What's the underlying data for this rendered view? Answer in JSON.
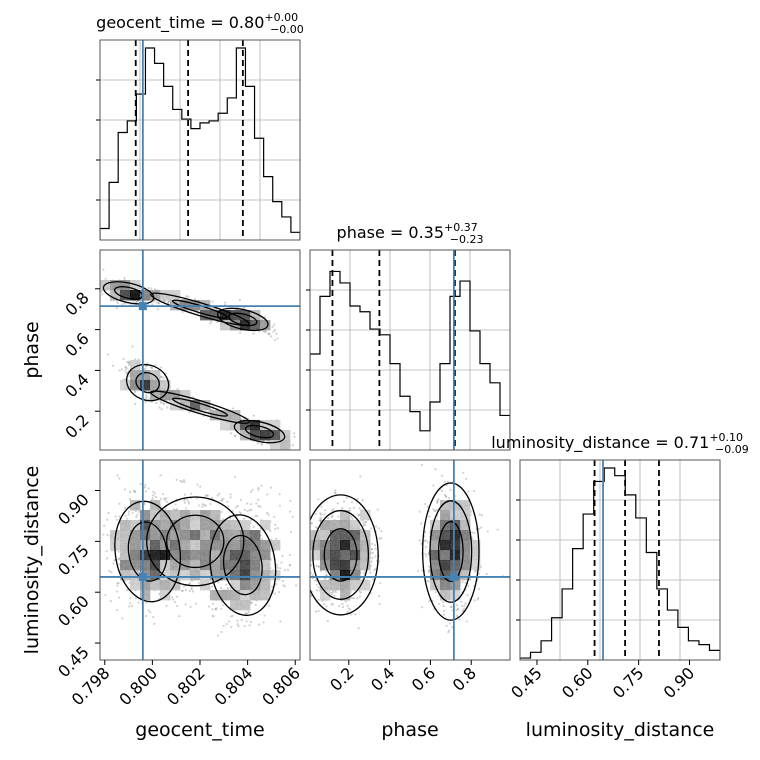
{
  "chart_data": {
    "type": "corner",
    "parameters": [
      "geocent_time",
      "phase",
      "luminosity_distance"
    ],
    "truth": {
      "geocent_time": 0.7996,
      "phase": 0.715,
      "luminosity_distance": 0.645
    },
    "ranges": {
      "geocent_time": [
        0.7978,
        0.8062
      ],
      "phase": [
        0.01,
        0.99
      ],
      "luminosity_distance": [
        0.4,
        0.99
      ]
    },
    "titles": [
      {
        "param": "geocent_time",
        "text": "geocent_time = 0.80",
        "plus": "+0.00",
        "minus": "−0.00"
      },
      {
        "param": "phase",
        "text": "phase = 0.35",
        "plus": "+0.37",
        "minus": "−0.23"
      },
      {
        "param": "luminosity_distance",
        "text": "luminosity_distance = 0.71",
        "plus": "+0.10",
        "minus": "−0.09"
      }
    ],
    "ticks": {
      "geocent_time": {
        "values": [
          0.798,
          0.8,
          0.802,
          0.804,
          0.806
        ],
        "labels": [
          "0.798",
          "0.800",
          "0.802",
          "0.804",
          "0.806"
        ]
      },
      "phase_x": {
        "values": [
          0.2,
          0.4,
          0.6,
          0.8
        ],
        "labels": [
          "0.2",
          "0.4",
          "0.6",
          "0.8"
        ]
      },
      "phase_y": {
        "values": [
          0.2,
          0.4,
          0.6,
          0.8
        ],
        "labels": [
          "0.2",
          "0.4",
          "0.6",
          "0.8"
        ]
      },
      "luminosity_distance": {
        "values": [
          0.45,
          0.6,
          0.75,
          0.9
        ],
        "labels": [
          "0.45",
          "0.60",
          "0.75",
          "0.90"
        ]
      }
    },
    "quantiles": {
      "geocent_time": [
        0.7993,
        0.8015,
        0.8038
      ],
      "phase": [
        0.12,
        0.35,
        0.72
      ],
      "luminosity_distance": [
        0.62,
        0.71,
        0.81
      ]
    },
    "hist_geocent_time": [
      0.06,
      0.3,
      0.56,
      0.62,
      0.76,
      1.0,
      0.92,
      0.8,
      0.68,
      0.63,
      0.58,
      0.61,
      0.62,
      0.66,
      0.74,
      1.0,
      0.8,
      0.53,
      0.33,
      0.2,
      0.12,
      0.04
    ],
    "hist_phase": [
      0.5,
      0.8,
      0.93,
      0.87,
      0.75,
      0.72,
      0.63,
      0.6,
      0.45,
      0.28,
      0.2,
      0.1,
      0.25,
      0.45,
      0.8,
      0.88,
      0.62,
      0.45,
      0.35,
      0.18
    ],
    "hist_luminosity_distance": [
      0.01,
      0.04,
      0.1,
      0.22,
      0.37,
      0.58,
      0.76,
      0.93,
      1.0,
      0.96,
      0.86,
      0.74,
      0.56,
      0.37,
      0.26,
      0.17,
      0.1,
      0.08,
      0.05
    ],
    "xlabel": [
      "geocent_time",
      "phase",
      "luminosity_distance"
    ],
    "ylabel": [
      "phase",
      "luminosity_distance"
    ],
    "grid": true,
    "truth_color": "#4682b4",
    "hist_color": "#000000",
    "quantile_style": "dashed"
  }
}
